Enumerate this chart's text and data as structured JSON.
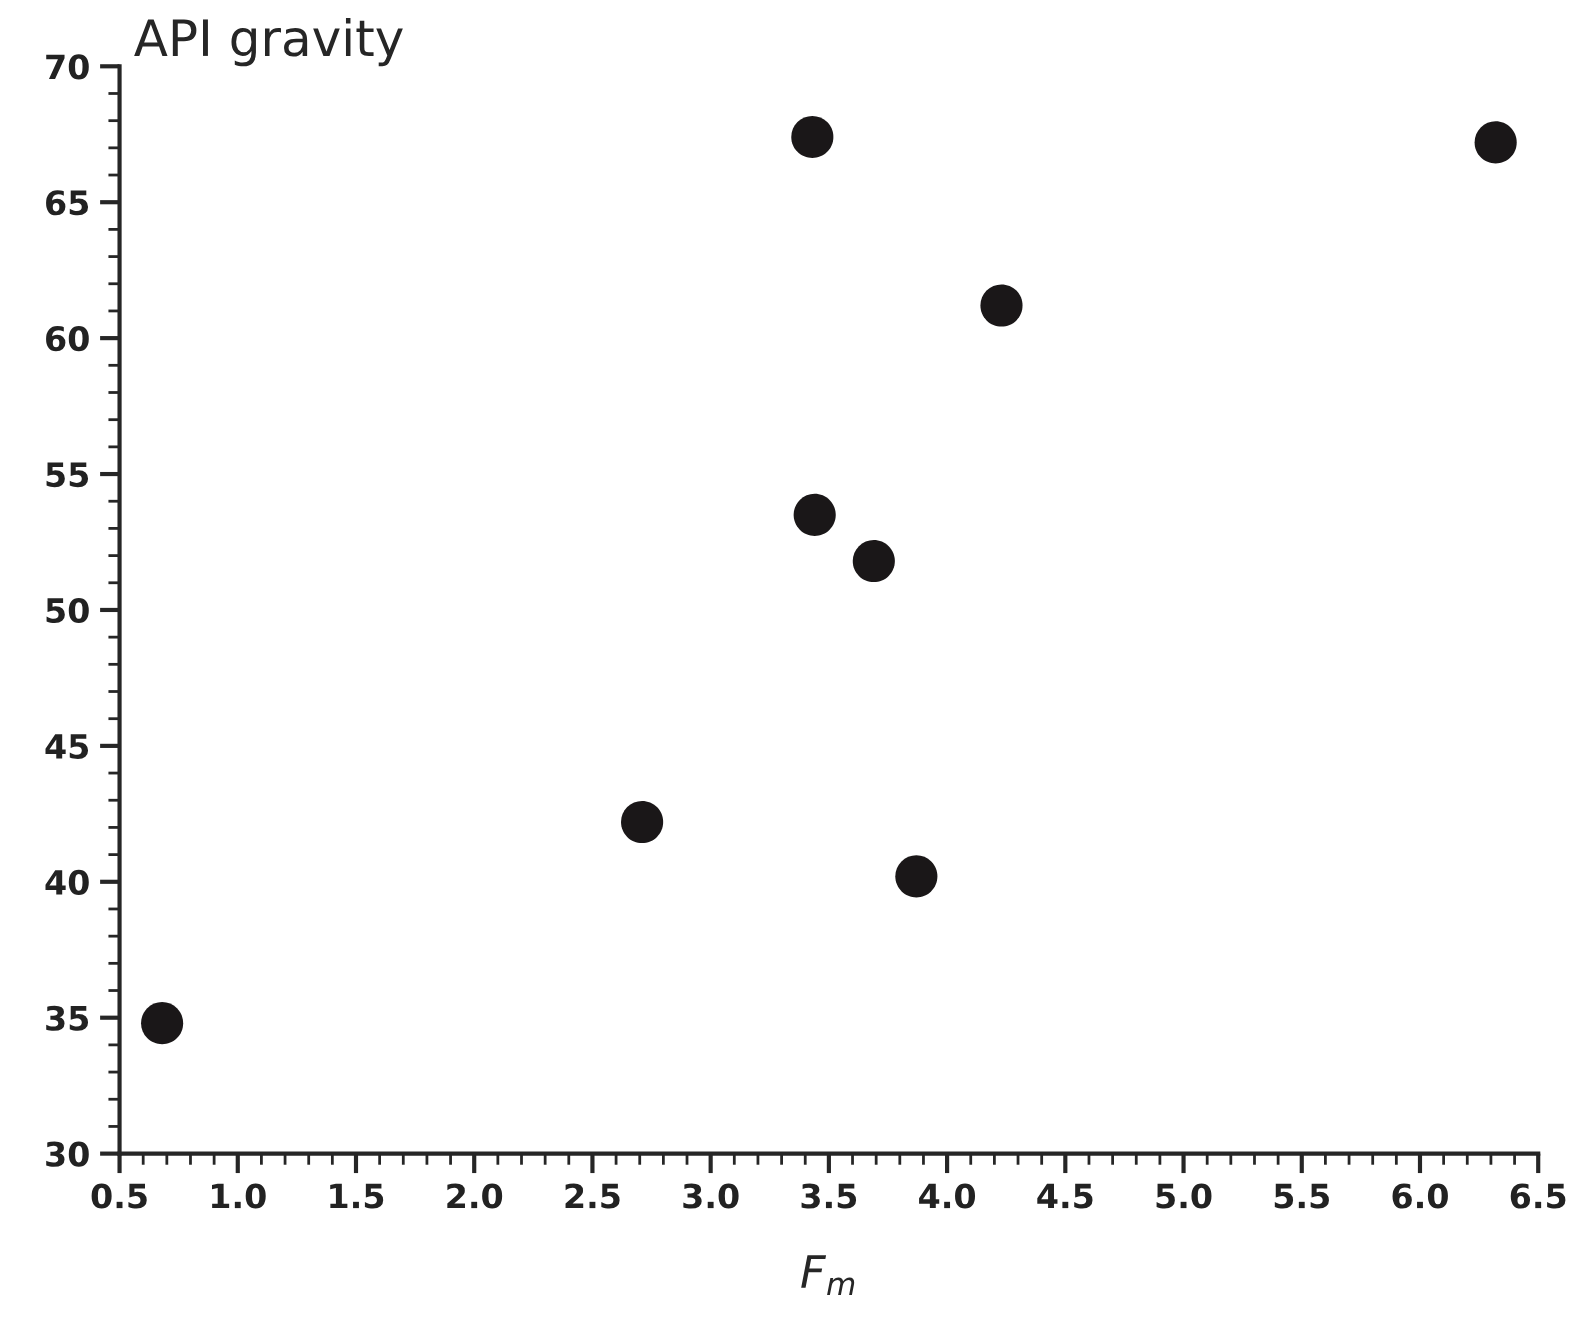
{
  "chart_data": {
    "type": "scatter",
    "ylabel": "API gravity",
    "xlabel": "F$_{m}$",
    "x": [
      0.68,
      2.71,
      3.43,
      6.32,
      4.23,
      3.44,
      3.69,
      3.87
    ],
    "series": [
      {
        "color": "#1a1718",
        "values": [
          34.8,
          42.2,
          67.4,
          67.2,
          61.2,
          53.5,
          51.8,
          40.2
        ]
      }
    ],
    "xlim": [
      0.5,
      6.5
    ],
    "xticks": [
      0.5,
      {
        "value": 1,
        "label": "1.0"
      },
      1.5,
      {
        "value": 2,
        "label": "2.0"
      },
      2.5,
      {
        "value": 3,
        "label": "3.0"
      },
      3.5,
      {
        "value": 4,
        "label": "4.0"
      },
      4.5,
      {
        "value": 5,
        "label": "5.0"
      },
      5.5,
      {
        "value": 6,
        "label": "6.0"
      },
      6.5
    ],
    "ylim": [
      30,
      70
    ],
    "yticks": [
      30,
      35,
      40,
      45,
      50,
      55,
      60,
      65,
      70
    ],
    "marker": "circle",
    "grid": false,
    "legend": false
  }
}
